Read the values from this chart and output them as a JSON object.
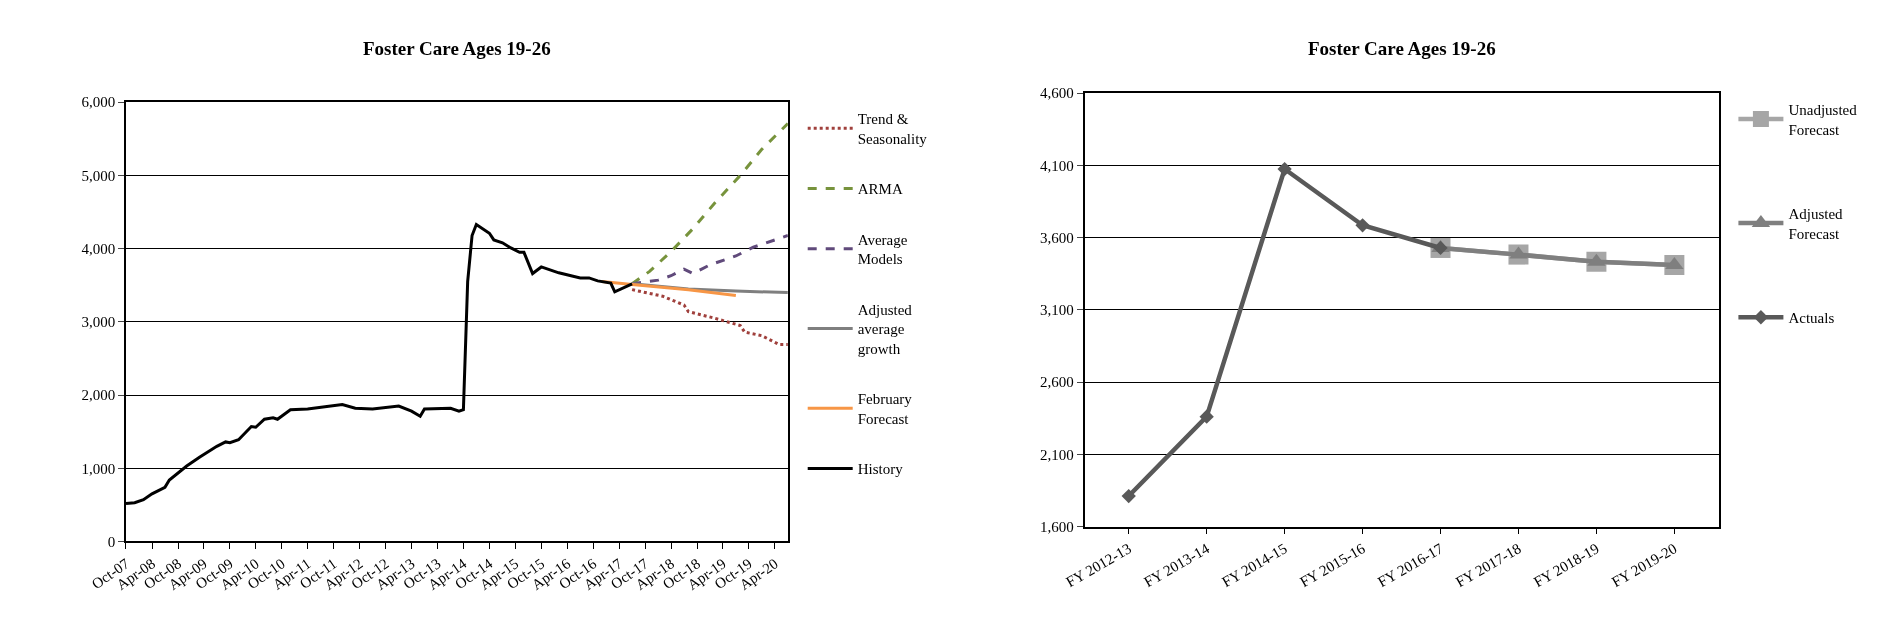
{
  "chart_data": [
    {
      "type": "line",
      "title": "Foster Care Ages 19-26",
      "xlim": [
        "2007-10",
        "2020-07"
      ],
      "xticks": [
        {
          "value": "2007-10",
          "label": "Oct-07"
        },
        {
          "value": "2008-04",
          "label": "Apr-08"
        },
        {
          "value": "2008-10",
          "label": "Oct-08"
        },
        {
          "value": "2009-04",
          "label": "Apr-09"
        },
        {
          "value": "2009-10",
          "label": "Oct-09"
        },
        {
          "value": "2010-04",
          "label": "Apr-10"
        },
        {
          "value": "2010-10",
          "label": "Oct-10"
        },
        {
          "value": "2011-04",
          "label": "Apr-11"
        },
        {
          "value": "2011-10",
          "label": "Oct-11"
        },
        {
          "value": "2012-04",
          "label": "Apr-12"
        },
        {
          "value": "2012-10",
          "label": "Oct-12"
        },
        {
          "value": "2013-04",
          "label": "Apr-13"
        },
        {
          "value": "2013-10",
          "label": "Oct-13"
        },
        {
          "value": "2014-04",
          "label": "Apr-14"
        },
        {
          "value": "2014-10",
          "label": "Oct-14"
        },
        {
          "value": "2015-04",
          "label": "Apr-15"
        },
        {
          "value": "2015-10",
          "label": "Oct-15"
        },
        {
          "value": "2016-04",
          "label": "Apr-16"
        },
        {
          "value": "2016-10",
          "label": "Oct-16"
        },
        {
          "value": "2017-04",
          "label": "Apr-17"
        },
        {
          "value": "2017-10",
          "label": "Oct-17"
        },
        {
          "value": "2018-04",
          "label": "Apr-18"
        },
        {
          "value": "2018-10",
          "label": "Oct-18"
        },
        {
          "value": "2019-04",
          "label": "Apr-19"
        },
        {
          "value": "2019-10",
          "label": "Oct-19"
        },
        {
          "value": "2020-04",
          "label": "Apr-20"
        }
      ],
      "ylim": [
        0,
        6000
      ],
      "yticks": [
        {
          "value": 0,
          "label": "0"
        },
        {
          "value": 1000,
          "label": "1,000"
        },
        {
          "value": 2000,
          "label": "2,000"
        },
        {
          "value": 3000,
          "label": "3,000"
        },
        {
          "value": 4000,
          "label": "4,000"
        },
        {
          "value": 5000,
          "label": "5,000"
        },
        {
          "value": 6000,
          "label": "6,000"
        }
      ],
      "grid": "y",
      "legend": "right",
      "marker": "none",
      "series": [
        {
          "name": "Trend & Seasonality",
          "color": "#a0403c",
          "line_style": "dotted",
          "x": [
            "2017-07",
            "2018-02",
            "2018-07",
            "2018-08",
            "2019-02",
            "2019-08",
            "2019-09",
            "2020-01",
            "2020-05",
            "2020-07"
          ],
          "values": [
            3440,
            3350,
            3230,
            3140,
            3050,
            2950,
            2860,
            2810,
            2690,
            2690
          ]
        },
        {
          "name": "ARMA",
          "color": "#77933c",
          "line_style": "dashed",
          "x": [
            "2017-07",
            "2017-11",
            "2018-04",
            "2018-09",
            "2019-02",
            "2019-08",
            "2020-01",
            "2020-07"
          ],
          "values": [
            3520,
            3690,
            3960,
            4270,
            4620,
            5000,
            5360,
            5710
          ]
        },
        {
          "name": "Average Models",
          "color": "#604a7b",
          "line_style": "dashed",
          "x": [
            "2017-07",
            "2018-01",
            "2018-04",
            "2018-07",
            "2018-09",
            "2019-01",
            "2019-07",
            "2019-11",
            "2020-04",
            "2020-07"
          ],
          "values": [
            3520,
            3570,
            3630,
            3720,
            3660,
            3780,
            3900,
            4020,
            4120,
            4180
          ]
        },
        {
          "name": "Adjusted average growth",
          "color": "#7f7f7f",
          "line_style": "solid",
          "x": [
            "2017-07",
            "2018-08",
            "2019-07",
            "2020-07"
          ],
          "values": [
            3520,
            3450,
            3420,
            3400
          ]
        },
        {
          "name": "February Forecast",
          "color": "#f79646",
          "line_style": "solid",
          "x": [
            "2016-12",
            "2017-07",
            "2018-08",
            "2019-07"
          ],
          "values": [
            3550,
            3510,
            3440,
            3360
          ]
        },
        {
          "name": "History",
          "color": "#000000",
          "line_style": "solid",
          "x": [
            "2007-10",
            "2007-12",
            "2008-02",
            "2008-04",
            "2008-07",
            "2008-08",
            "2008-12",
            "2009-03",
            "2009-07",
            "2009-09",
            "2009-10",
            "2009-12",
            "2010-03",
            "2010-04",
            "2010-06",
            "2010-08",
            "2010-09",
            "2010-12",
            "2011-04",
            "2011-08",
            "2011-12",
            "2012-03",
            "2012-07",
            "2013-01",
            "2013-04",
            "2013-06",
            "2013-07",
            "2014-01",
            "2014-03",
            "2014-04",
            "2014-05",
            "2014-06",
            "2014-07",
            "2014-10",
            "2014-11",
            "2015-01",
            "2015-03",
            "2015-05",
            "2015-06",
            "2015-08",
            "2015-10",
            "2016-02",
            "2016-07",
            "2016-09",
            "2016-11",
            "2017-02",
            "2017-03",
            "2017-07"
          ],
          "values": [
            520,
            530,
            570,
            650,
            740,
            840,
            1030,
            1150,
            1300,
            1360,
            1350,
            1390,
            1570,
            1560,
            1670,
            1690,
            1670,
            1800,
            1810,
            1840,
            1870,
            1820,
            1810,
            1850,
            1780,
            1710,
            1810,
            1820,
            1780,
            1800,
            3550,
            4180,
            4330,
            4210,
            4120,
            4080,
            4010,
            3950,
            3950,
            3660,
            3750,
            3670,
            3600,
            3600,
            3560,
            3530,
            3410,
            3520
          ]
        }
      ]
    },
    {
      "type": "line",
      "title": "Foster Care Ages 19-26",
      "categories": [
        "FY 2012-13",
        "FY 2013-14",
        "FY 2014-15",
        "FY 2015-16",
        "FY 2016-17",
        "FY 2017-18",
        "FY 2018-19",
        "FY 2019-20"
      ],
      "ylim": [
        1600,
        4600
      ],
      "yticks": [
        {
          "value": 1600,
          "label": "1,600"
        },
        {
          "value": 2100,
          "label": "2,100"
        },
        {
          "value": 2600,
          "label": "2,600"
        },
        {
          "value": 3100,
          "label": "3,100"
        },
        {
          "value": 3600,
          "label": "3,600"
        },
        {
          "value": 4100,
          "label": "4,100"
        },
        {
          "value": 4600,
          "label": "4,600"
        }
      ],
      "grid": "y",
      "legend": "right",
      "line_style": "solid",
      "series": [
        {
          "name": "Unadjusted Forecast",
          "color": "#a6a6a6",
          "marker": "square",
          "values": [
            null,
            null,
            null,
            null,
            3528,
            3482,
            3433,
            3410
          ]
        },
        {
          "name": "Adjusted Forecast",
          "color": "#7f7f7f",
          "marker": "triangle",
          "values": [
            null,
            null,
            null,
            null,
            3528,
            3482,
            3433,
            3410
          ]
        },
        {
          "name": "Actuals",
          "color": "#595959",
          "marker": "diamond",
          "values": [
            1812,
            2361,
            4074,
            3685,
            3528,
            null,
            null,
            null
          ]
        }
      ]
    }
  ]
}
